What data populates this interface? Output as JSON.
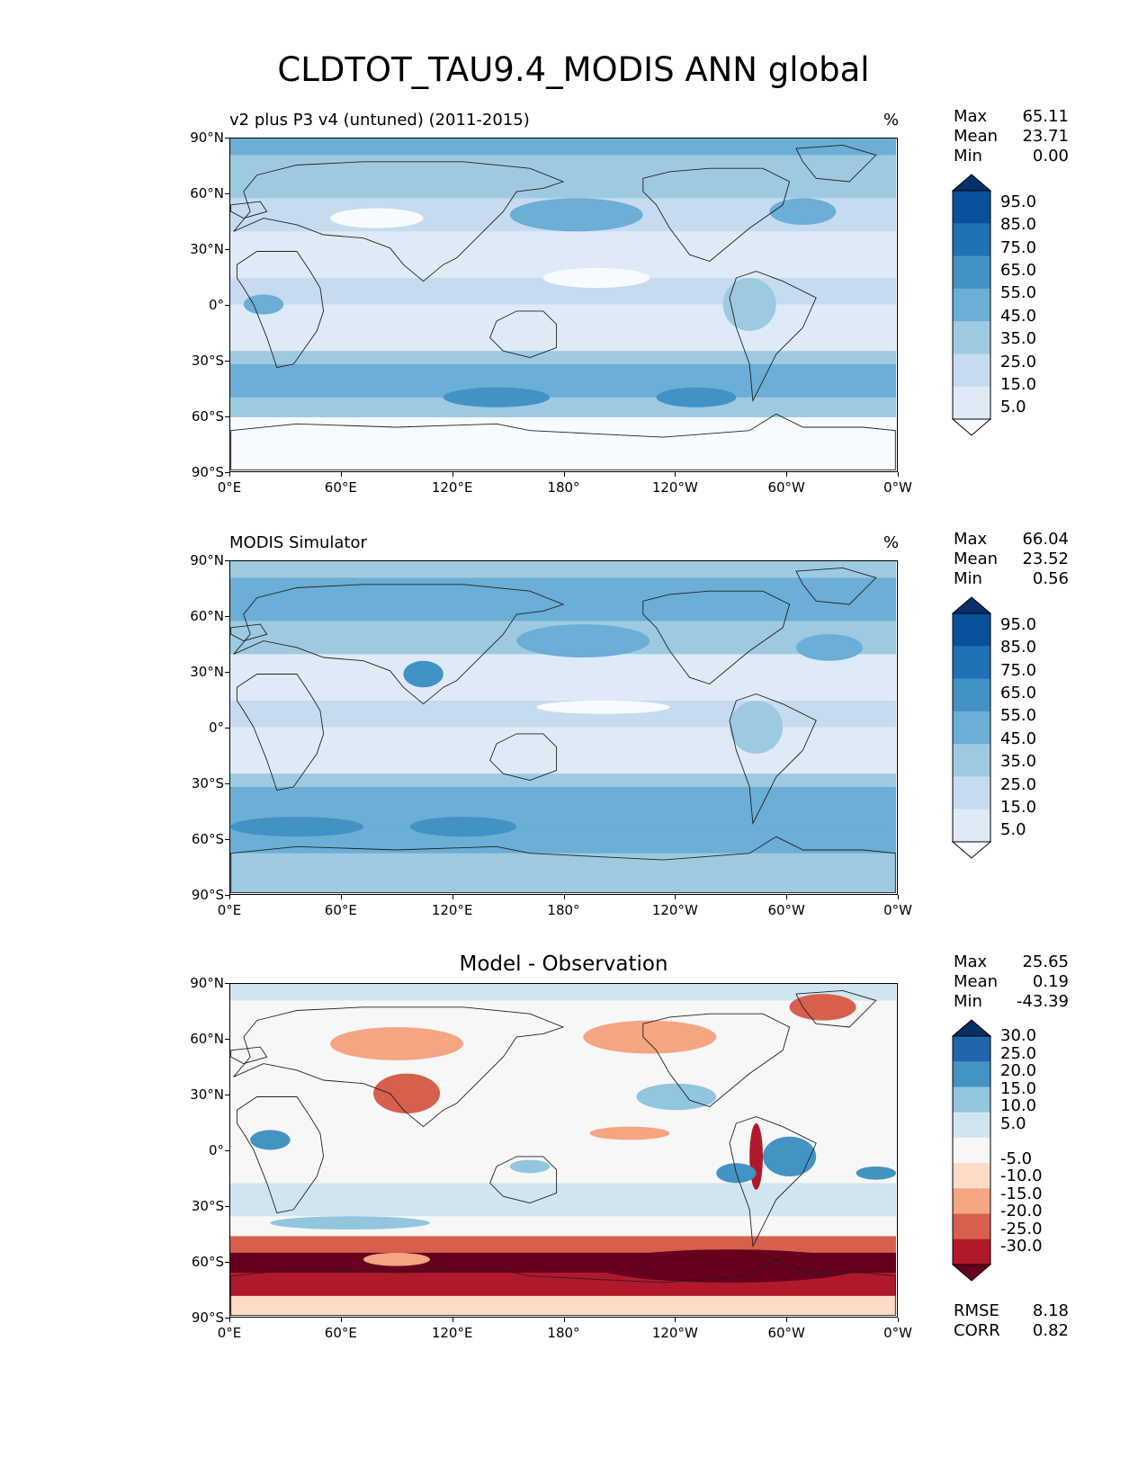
{
  "title": "CLDTOT_TAU9.4_MODIS ANN global",
  "colors": {
    "blues": [
      "#f7fbff",
      "#deebf7",
      "#c6dbef",
      "#9ecae1",
      "#6baed6",
      "#4292c6",
      "#2171b5",
      "#08519c",
      "#08306b"
    ],
    "rdbu": [
      "#67001f",
      "#b2182b",
      "#d6604d",
      "#f4a582",
      "#fddbc7",
      "#f7f7f7",
      "#d1e5f0",
      "#92c5de",
      "#4393c3",
      "#2166ac",
      "#053061"
    ]
  },
  "lat_ticks": [
    "90°N",
    "60°N",
    "30°N",
    "0°",
    "30°S",
    "60°S",
    "90°S"
  ],
  "lon_ticks": [
    "0°E",
    "60°E",
    "120°E",
    "180°",
    "120°W",
    "60°W",
    "0°W"
  ],
  "panels": [
    {
      "subtitle": "v2 plus P3 v4 (untuned) (2011-2015)",
      "units": "%",
      "center_title": "",
      "stats": [
        {
          "label": "Max",
          "value": "65.11"
        },
        {
          "label": "Mean",
          "value": "23.71"
        },
        {
          "label": "Min",
          "value": "0.00"
        }
      ],
      "colorbar_labels": [
        "95.0",
        "85.0",
        "75.0",
        "65.0",
        "55.0",
        "45.0",
        "35.0",
        "25.0",
        "15.0",
        "5.0"
      ],
      "extra_stats": []
    },
    {
      "subtitle": "MODIS Simulator",
      "units": "%",
      "center_title": "",
      "stats": [
        {
          "label": "Max",
          "value": "66.04"
        },
        {
          "label": "Mean",
          "value": "23.52"
        },
        {
          "label": "Min",
          "value": "0.56"
        }
      ],
      "colorbar_labels": [
        "95.0",
        "85.0",
        "75.0",
        "65.0",
        "55.0",
        "45.0",
        "35.0",
        "25.0",
        "15.0",
        "5.0"
      ],
      "extra_stats": []
    },
    {
      "subtitle": "",
      "units": "",
      "center_title": "Model - Observation",
      "stats": [
        {
          "label": "Max",
          "value": "25.65"
        },
        {
          "label": "Mean",
          "value": "0.19"
        },
        {
          "label": "Min",
          "value": "-43.39"
        }
      ],
      "colorbar_labels": [
        "30.0",
        "25.0",
        "20.0",
        "15.0",
        "10.0",
        "5.0",
        "-5.0",
        "-10.0",
        "-15.0",
        "-20.0",
        "-25.0",
        "-30.0"
      ],
      "extra_stats": [
        {
          "label": "RMSE",
          "value": "8.18"
        },
        {
          "label": "CORR",
          "value": "0.82"
        }
      ]
    }
  ]
}
